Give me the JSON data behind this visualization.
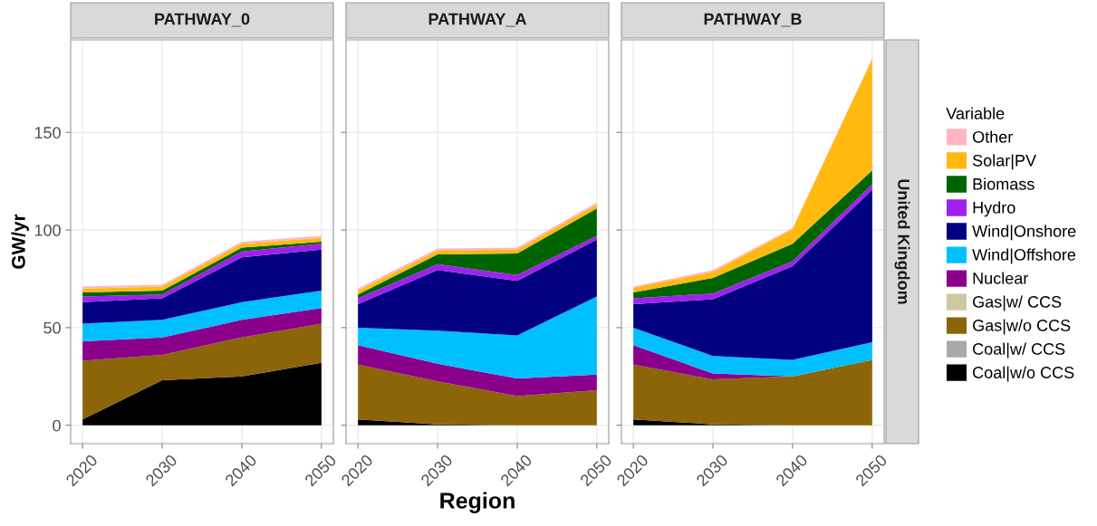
{
  "chart_data": [
    {
      "type": "area",
      "stacked": true,
      "title": "PATHWAY_0",
      "ylabel": "GW/yr",
      "legend_title": "Variable",
      "x": [
        2020,
        2030,
        2040,
        2050
      ],
      "xlim": [
        2018.5,
        2051.5
      ],
      "xticks": [
        2020,
        2030,
        2040,
        2050
      ],
      "ylim": [
        -9.4,
        197.4
      ],
      "yticks": [
        0,
        50,
        100,
        150
      ],
      "grid": true,
      "legend": "right",
      "series": [
        {
          "name": "Coal|w/o CCS",
          "color": "#000000",
          "values": [
            3,
            23,
            25,
            32
          ]
        },
        {
          "name": "Coal|w/ CCS",
          "color": "#a9a9a9",
          "values": [
            null,
            null,
            null,
            null
          ]
        },
        {
          "name": "Gas|w/o CCS",
          "color": "#8b6508",
          "values": [
            30,
            13,
            20,
            20
          ]
        },
        {
          "name": "Gas|w/ CCS",
          "color": "#cdc8a0",
          "values": [
            null,
            null,
            null,
            null
          ]
        },
        {
          "name": "Nuclear",
          "color": "#8b008b",
          "values": [
            10,
            9,
            9,
            8
          ]
        },
        {
          "name": "Wind|Offshore",
          "color": "#00bfff",
          "values": [
            9,
            9,
            9,
            9
          ]
        },
        {
          "name": "Wind|Onshore",
          "color": "#000080",
          "values": [
            11,
            11,
            23,
            21
          ]
        },
        {
          "name": "Hydro",
          "color": "#a020f0",
          "values": [
            3,
            2,
            3,
            3
          ]
        },
        {
          "name": "Biomass",
          "color": "#006400",
          "values": [
            2,
            2,
            2,
            1
          ]
        },
        {
          "name": "Solar|PV",
          "color": "#ffb90f",
          "values": [
            2,
            2,
            2,
            2
          ]
        },
        {
          "name": "Other",
          "color": "#ffb6c1",
          "values": [
            1,
            1,
            1,
            1
          ]
        }
      ]
    },
    {
      "type": "area",
      "stacked": true,
      "title": "PATHWAY_A",
      "xlabel": "Region",
      "x": [
        2020,
        2030,
        2040,
        2050
      ],
      "xlim": [
        2018.5,
        2051.5
      ],
      "xticks": [
        2020,
        2030,
        2040,
        2050
      ],
      "ylim": [
        -9.4,
        197.4
      ],
      "yticks": [
        0,
        50,
        100,
        150
      ],
      "tick_labels": "x",
      "grid": true,
      "series": [
        {
          "color": "#000000",
          "values": [
            3,
            0.5,
            0,
            0
          ]
        },
        {
          "color": "#8b6508",
          "values": [
            28,
            22,
            15,
            18
          ]
        },
        {
          "color": "#8b008b",
          "values": [
            10,
            9,
            9,
            8
          ]
        },
        {
          "color": "#00bfff",
          "values": [
            9,
            17,
            22,
            40
          ]
        },
        {
          "color": "#000080",
          "values": [
            12,
            31,
            28,
            29
          ]
        },
        {
          "color": "#a020f0",
          "values": [
            3,
            3,
            3,
            2
          ]
        },
        {
          "color": "#006400",
          "values": [
            2,
            5,
            11,
            14
          ]
        },
        {
          "color": "#ffb90f",
          "values": [
            2,
            2,
            2,
            2
          ]
        },
        {
          "color": "#ffb6c1",
          "values": [
            1,
            1,
            1,
            1
          ]
        }
      ]
    },
    {
      "type": "area",
      "stacked": true,
      "title": "PATHWAY_B",
      "annotations": [
        "United Kingdom"
      ],
      "x": [
        2020,
        2030,
        2040,
        2050
      ],
      "xlim": [
        2018.5,
        2051.5
      ],
      "xticks": [
        2020,
        2030,
        2040,
        2050
      ],
      "ylim": [
        -9.4,
        197.4
      ],
      "yticks": [
        0,
        50,
        100,
        150
      ],
      "tick_labels": "x",
      "grid": true,
      "series": [
        {
          "color": "#000000",
          "values": [
            3,
            0.5,
            0,
            0
          ]
        },
        {
          "color": "#8b6508",
          "values": [
            28,
            23,
            25,
            33.5
          ]
        },
        {
          "color": "#8b008b",
          "values": [
            10,
            3,
            0,
            0
          ]
        },
        {
          "color": "#00bfff",
          "values": [
            9,
            9,
            8.5,
            9
          ]
        },
        {
          "color": "#000080",
          "values": [
            12,
            29,
            48,
            78
          ]
        },
        {
          "color": "#a020f0",
          "values": [
            3,
            3,
            2.5,
            3
          ]
        },
        {
          "color": "#006400",
          "values": [
            3,
            8,
            9,
            7
          ]
        },
        {
          "color": "#ffb90f",
          "values": [
            2.5,
            3,
            7.5,
            57
          ]
        },
        {
          "color": "#ffb6c1",
          "values": [
            0.5,
            1,
            0.5,
            0.5
          ]
        }
      ]
    }
  ]
}
